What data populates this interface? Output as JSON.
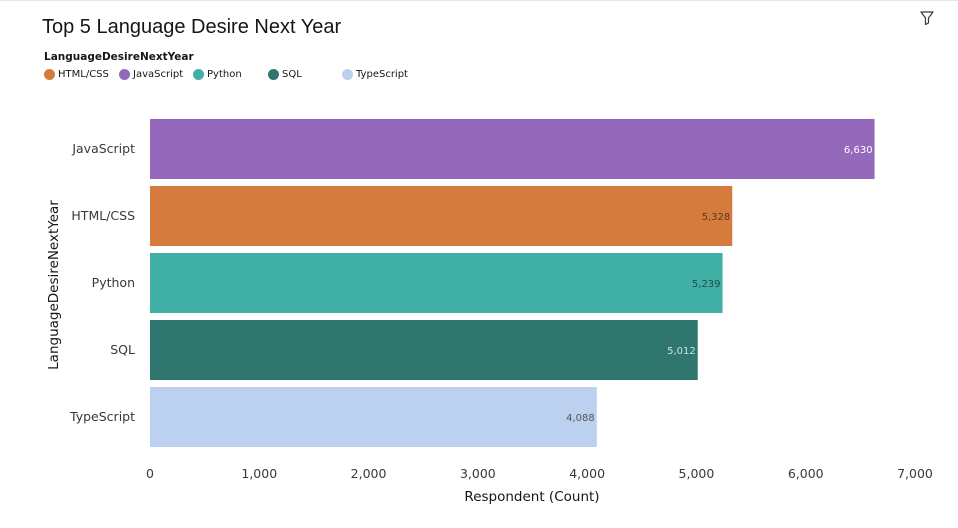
{
  "chart_data": {
    "type": "bar",
    "orientation": "horizontal",
    "title": "Top 5 Language Desire Next Year",
    "xlabel": "Respondent (Count)",
    "ylabel": "LanguageDesireNextYear",
    "xlim": [
      0,
      7000
    ],
    "xticks": [
      0,
      1000,
      2000,
      3000,
      4000,
      5000,
      6000,
      7000
    ],
    "xtick_labels": [
      "0",
      "1,000",
      "2,000",
      "3,000",
      "4,000",
      "5,000",
      "6,000",
      "7,000"
    ],
    "categories": [
      "JavaScript",
      "HTML/CSS",
      "Python",
      "SQL",
      "TypeScript"
    ],
    "values": [
      6630,
      5328,
      5239,
      5012,
      4088
    ],
    "value_labels": [
      "6,630",
      "5,328",
      "5,239",
      "5,012",
      "4,088"
    ],
    "colors": [
      "#9468bb",
      "#d67b3e",
      "#40afa6",
      "#2e766e",
      "#bcd0ef"
    ],
    "label_colors": [
      "#ffffff",
      "#5a3a1e",
      "#1f4e4a",
      "#cfe5e2",
      "#555555"
    ],
    "grid": false,
    "legend": {
      "title": "LanguageDesireNextYear",
      "position": "top-left",
      "entries": [
        {
          "label": "HTML/CSS",
          "color": "#d67b3e"
        },
        {
          "label": "JavaScript",
          "color": "#9468bb"
        },
        {
          "label": "Python",
          "color": "#40afa6"
        },
        {
          "label": "SQL",
          "color": "#2e766e"
        },
        {
          "label": "TypeScript",
          "color": "#bcd0ef"
        }
      ]
    }
  },
  "icons": {
    "filter": "filter-icon"
  }
}
